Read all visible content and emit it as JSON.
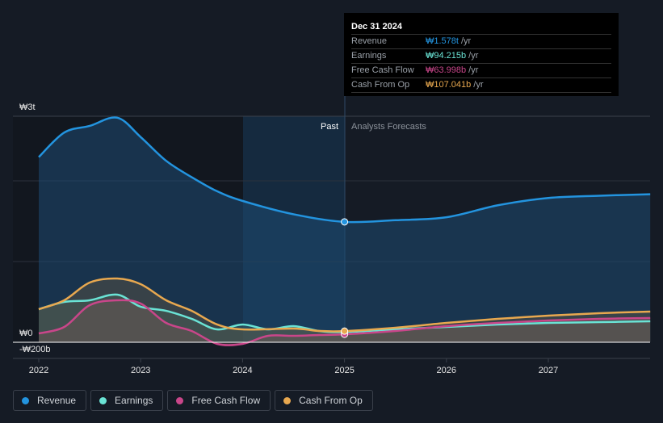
{
  "tooltip": {
    "date": "Dec 31 2024",
    "rows": [
      {
        "label": "Revenue",
        "value": "₩1.578t",
        "unit": "/yr",
        "color": "#2394df"
      },
      {
        "label": "Earnings",
        "value": "₩94.215b",
        "unit": "/yr",
        "color": "#6ae3d5"
      },
      {
        "label": "Free Cash Flow",
        "value": "₩63.998b",
        "unit": "/yr",
        "color": "#c9468a"
      },
      {
        "label": "Cash From Op",
        "value": "₩107.041b",
        "unit": "/yr",
        "color": "#e8a84f"
      }
    ]
  },
  "labels": {
    "past": "Past",
    "forecast": "Analysts Forecasts"
  },
  "legend": [
    {
      "label": "Revenue",
      "color": "#2394df"
    },
    {
      "label": "Earnings",
      "color": "#6ae3d5"
    },
    {
      "label": "Free Cash Flow",
      "color": "#c9468a"
    },
    {
      "label": "Cash From Op",
      "color": "#e8a84f"
    }
  ],
  "chart_data": {
    "type": "line",
    "unit": "₩ billions",
    "ylim": [
      -200,
      3000
    ],
    "y_tick_labels": [
      "₩3t",
      "₩0",
      "-₩200b"
    ],
    "x_tick_labels": [
      "2022",
      "2023",
      "2024",
      "2025",
      "2026",
      "2027"
    ],
    "past_until": 2025,
    "series": [
      {
        "name": "Revenue",
        "color": "#2394df",
        "x": [
          2022,
          2022.25,
          2022.5,
          2022.77,
          2023,
          2023.25,
          2023.5,
          2023.75,
          2024,
          2024.5,
          2025,
          2025.5,
          2026,
          2026.5,
          2027,
          2027.5,
          2028
        ],
        "y": [
          2450,
          2780,
          2870,
          2980,
          2720,
          2400,
          2180,
          1990,
          1860,
          1680,
          1578,
          1600,
          1640,
          1800,
          1900,
          1930,
          1950
        ]
      },
      {
        "name": "Earnings",
        "color": "#6ae3d5",
        "x": [
          2022,
          2022.25,
          2022.5,
          2022.77,
          2023,
          2023.25,
          2023.5,
          2023.75,
          2024,
          2024.25,
          2024.5,
          2024.75,
          2025,
          2025.5,
          2026,
          2026.5,
          2027,
          2027.5,
          2028
        ],
        "y": [
          402,
          500,
          522,
          598,
          435,
          380,
          272,
          130,
          196,
          130,
          174,
          109,
          94.2,
          130,
          163,
          196,
          217,
          228,
          239
        ]
      },
      {
        "name": "Free Cash Flow",
        "color": "#c9468a",
        "x": [
          2022,
          2022.25,
          2022.5,
          2022.77,
          2023,
          2023.25,
          2023.5,
          2023.75,
          2024,
          2024.25,
          2024.5,
          2024.75,
          2025,
          2025.5,
          2026,
          2026.5,
          2027,
          2027.5,
          2028
        ],
        "y": [
          76,
          163,
          456,
          522,
          478,
          217,
          109,
          -65,
          -65,
          43,
          43,
          54,
          64,
          109,
          174,
          217,
          250,
          272,
          283
        ]
      },
      {
        "name": "Cash From Op",
        "color": "#e8a84f",
        "x": [
          2022,
          2022.25,
          2022.5,
          2022.77,
          2023,
          2023.25,
          2023.5,
          2023.75,
          2024,
          2024.5,
          2024.75,
          2025,
          2025.5,
          2026,
          2026.5,
          2027,
          2027.5,
          2028
        ],
        "y": [
          402,
          522,
          761,
          815,
          739,
          522,
          380,
          196,
          130,
          141,
          109,
          107,
          152,
          217,
          272,
          315,
          348,
          370
        ]
      }
    ]
  }
}
